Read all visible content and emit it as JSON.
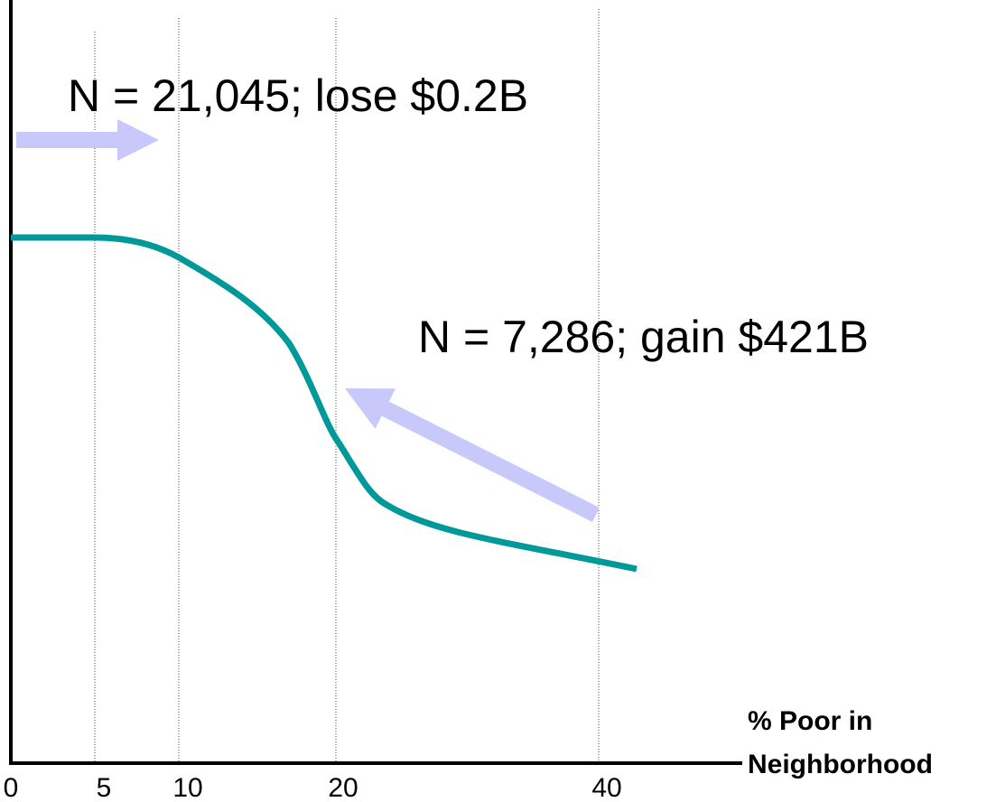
{
  "annotations": [
    "N = 21,045; lose $0.2B",
    "N = 7,286; gain $421B"
  ],
  "x_axis": {
    "label": [
      "% Poor in",
      "Neighborhood"
    ],
    "ticks": [
      "0",
      "5",
      "10",
      "20",
      "40"
    ]
  }
}
